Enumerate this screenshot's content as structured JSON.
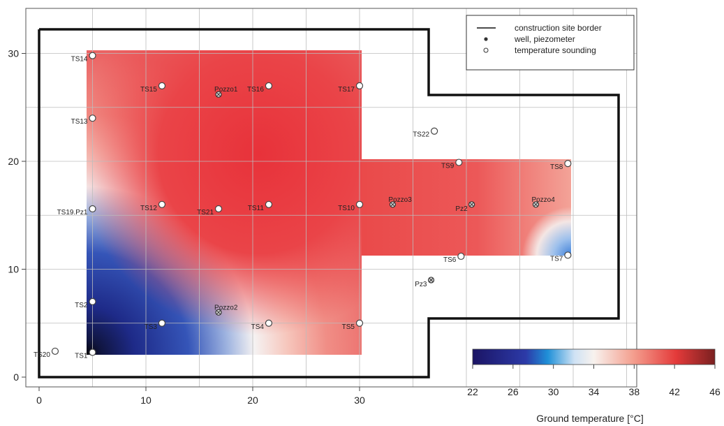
{
  "legend": {
    "items": [
      {
        "symbol": "line",
        "label": "construction site border"
      },
      {
        "symbol": "filled-dot",
        "label": "well, piezometer"
      },
      {
        "symbol": "hollow-dot",
        "label": "temperature sounding"
      }
    ]
  },
  "axes": {
    "x_ticks": [
      "0",
      "10",
      "20",
      "30"
    ],
    "y_ticks": [
      "0",
      "10",
      "20",
      "30"
    ]
  },
  "colorbar": {
    "title": "Ground temperature [°C]",
    "min": 22,
    "max": 46,
    "ticks": [
      "22",
      "26",
      "30",
      "34",
      "38",
      "42",
      "46"
    ],
    "colors": [
      "#1b1464",
      "#2c3aa8",
      "#1f90d8",
      "#f4f4f4",
      "#f4a090",
      "#e43a3a",
      "#7a2020"
    ]
  },
  "soundings": [
    {
      "label": "TS1",
      "x": 5,
      "y": 2.3,
      "temp": 22
    },
    {
      "label": "TS2",
      "x": 5,
      "y": 7,
      "temp": 22
    },
    {
      "label": "TS3",
      "x": 11.5,
      "y": 5,
      "temp": 28
    },
    {
      "label": "TS4",
      "x": 21.5,
      "y": 5,
      "temp": 34
    },
    {
      "label": "TS5",
      "x": 30,
      "y": 5,
      "temp": 36
    },
    {
      "label": "TS6",
      "x": 39.5,
      "y": 11.2,
      "temp": 38
    },
    {
      "label": "TS7",
      "x": 49.5,
      "y": 11.3,
      "temp": 32
    },
    {
      "label": "TS8",
      "x": 49.5,
      "y": 19.8,
      "temp": 38
    },
    {
      "label": "TS9",
      "x": 39.3,
      "y": 19.9,
      "temp": 41
    },
    {
      "label": "TS10",
      "x": 30,
      "y": 16,
      "temp": 41
    },
    {
      "label": "TS11",
      "x": 21.5,
      "y": 16,
      "temp": 41
    },
    {
      "label": "TS12",
      "x": 11.5,
      "y": 16,
      "temp": 33
    },
    {
      "label": "TS13",
      "x": 5,
      "y": 24,
      "temp": 37
    },
    {
      "label": "TS14",
      "x": 5,
      "y": 29.8,
      "temp": 37
    },
    {
      "label": "TS15",
      "x": 11.5,
      "y": 27,
      "temp": 38
    },
    {
      "label": "TS16",
      "x": 21.5,
      "y": 27,
      "temp": 42
    },
    {
      "label": "TS17",
      "x": 30,
      "y": 27,
      "temp": 42
    },
    {
      "label": "TS19.Pz1",
      "x": 5,
      "y": 15.6,
      "temp": 30
    },
    {
      "label": "TS20",
      "x": 1.5,
      "y": 2.4,
      "temp": null
    },
    {
      "label": "TS21",
      "x": 16.8,
      "y": 15.6,
      "temp": 38
    },
    {
      "label": "TS22",
      "x": 37,
      "y": 22.8,
      "temp": null
    }
  ],
  "wells": [
    {
      "label": "Pozzo1",
      "x": 16.8,
      "y": 26.2
    },
    {
      "label": "Pozzo2",
      "x": 16.8,
      "y": 6
    },
    {
      "label": "Pozzo3",
      "x": 33.1,
      "y": 16
    },
    {
      "label": "Pozzo4",
      "x": 46.5,
      "y": 16
    },
    {
      "label": "Pz2",
      "x": 40.5,
      "y": 16
    },
    {
      "label": "Pz3",
      "x": 36.7,
      "y": 9
    }
  ]
}
